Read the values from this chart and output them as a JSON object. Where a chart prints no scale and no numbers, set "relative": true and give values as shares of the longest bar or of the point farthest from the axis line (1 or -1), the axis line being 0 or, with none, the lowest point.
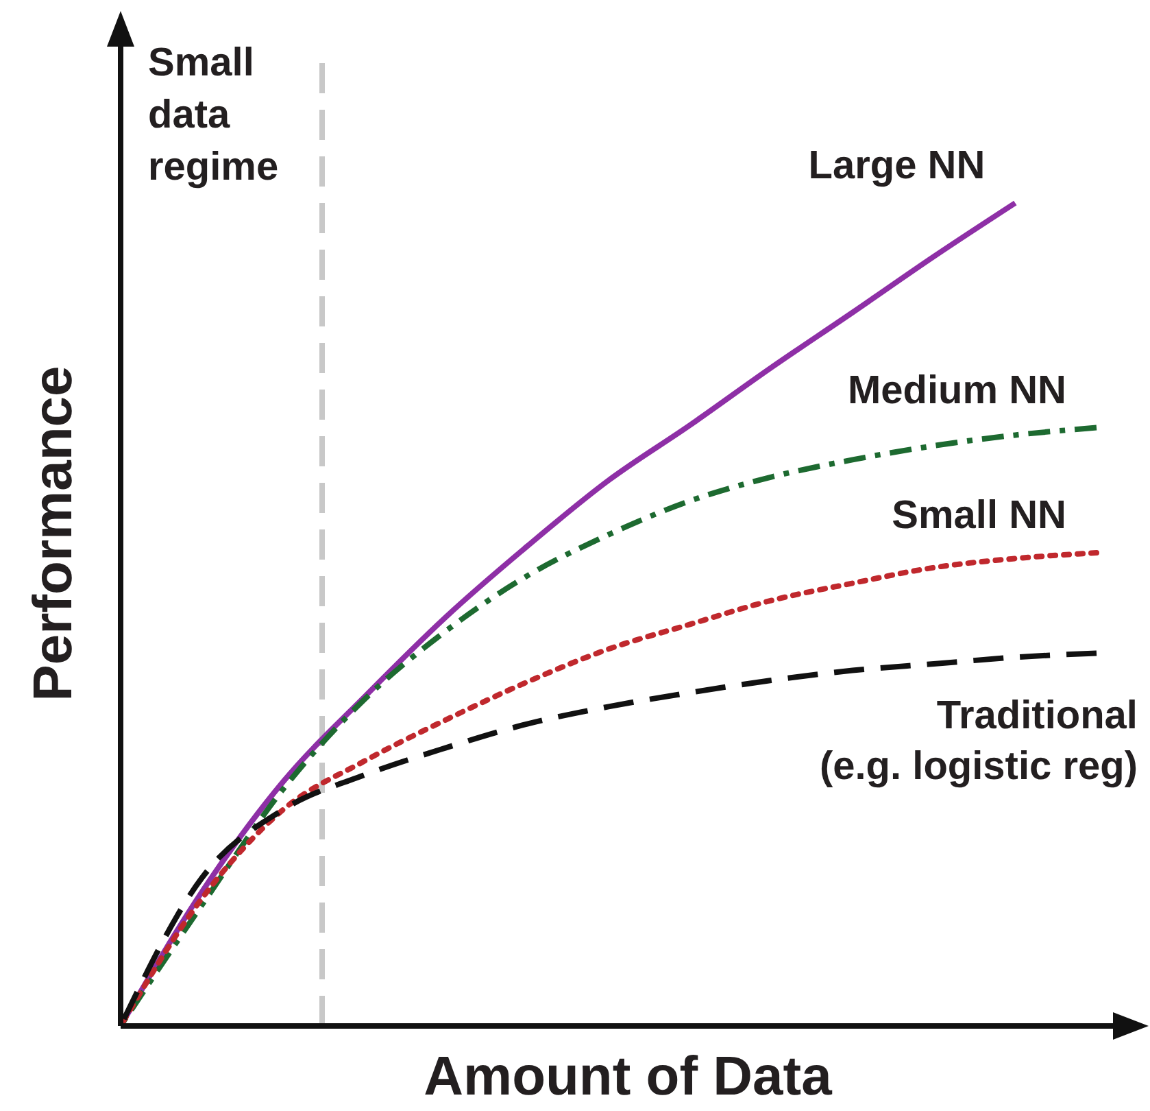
{
  "chart_data": {
    "type": "line",
    "relative": true,
    "xlabel": "Amount of Data",
    "ylabel": "Performance",
    "categories": [
      null,
      null,
      null,
      null,
      null,
      null,
      null,
      null,
      null,
      null,
      null,
      null,
      null
    ],
    "annotations": [
      "Small\ndata\nregime"
    ],
    "series": [
      {
        "name": "Large NN",
        "color": "#8e2fa6",
        "line_style": "solid",
        "values": [
          0,
          0.163,
          0.297,
          0.4,
          0.497,
          0.583,
          0.663,
          0.73,
          0.8,
          0.867,
          0.935,
          1,
          null
        ]
      },
      {
        "name": "Medium NN",
        "color": "#1d6a30",
        "line_style": "dashdot",
        "values": [
          0,
          0.147,
          0.288,
          0.397,
          0.48,
          0.547,
          0.597,
          0.638,
          0.667,
          0.688,
          0.705,
          0.718,
          0.727
        ]
      },
      {
        "name": "Small NN",
        "color": "#c0282d",
        "line_style": "dotted",
        "values": [
          0,
          0.155,
          0.263,
          0.322,
          0.372,
          0.418,
          0.458,
          0.488,
          0.517,
          0.538,
          0.557,
          0.568,
          0.575
        ]
      },
      {
        "name": "Traditional\n(e.g. logistic reg)",
        "color": "#111111",
        "line_style": "dashed",
        "values": [
          0,
          0.18,
          0.263,
          0.305,
          0.338,
          0.367,
          0.388,
          0.405,
          0.42,
          0.432,
          0.44,
          0.448,
          0.453
        ]
      }
    ]
  }
}
